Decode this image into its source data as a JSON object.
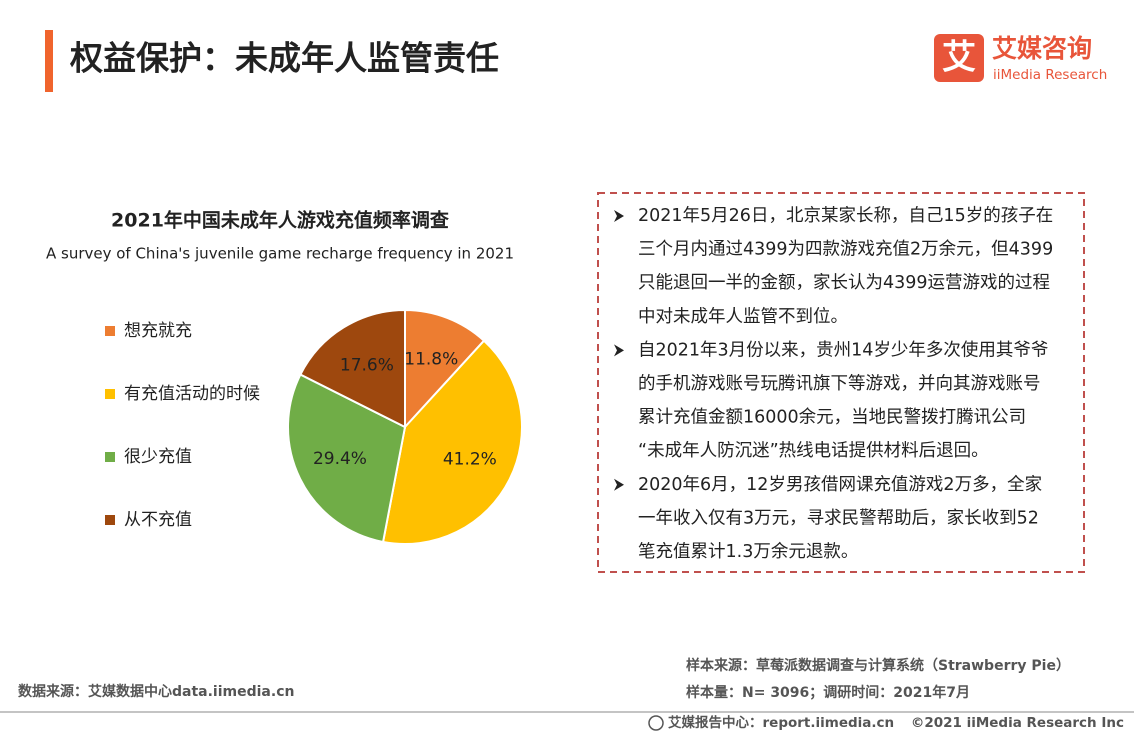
{
  "header": {
    "title": "权益保护：未成年人监管责任"
  },
  "logo": {
    "icon": "艾",
    "name": "艾媒咨询",
    "english": "iiMedia Research"
  },
  "chart_data": {
    "type": "pie",
    "title": "2021年中国未成年人游戏充值频率调查",
    "subtitle": "A survey of China's juvenile game recharge frequency in 2021",
    "categories": [
      "想充就充",
      "有充值活动的时候",
      "很少充值",
      "从不充值"
    ],
    "values": [
      11.8,
      41.2,
      29.4,
      17.6
    ],
    "value_labels": [
      "11.8%",
      "41.2%",
      "29.4%",
      "17.6%"
    ],
    "colors": [
      "#ed7d31",
      "#ffc000",
      "#70ad47",
      "#9e480e"
    ],
    "legend": "left"
  },
  "notes": [
    [
      "2021年5月26日，北京某家长称，自己15岁的孩子在",
      "三个月内通过4399为四款游戏充值2万余元，但4399",
      "只能退回一半的金额，家长认为4399运营游戏的过程",
      "中对未成年人监管不到位。"
    ],
    [
      "自2021年3月份以来，贵州14岁少年多次使用其爷爷",
      "的手机游戏账号玩腾讯旗下等游戏，并向其游戏账号",
      "累计充值金额16000余元，当地民警拨打腾讯公司",
      "“未成年人防沉迷”热线电话提供材料后退回。"
    ],
    [
      "2020年6月，12岁男孩借网课充值游戏2万多，全家",
      "一年收入仅有3万元，寻求民警帮助后，家长收到52",
      "笔充值累计1.3万余元退款。"
    ]
  ],
  "footer": {
    "data_source": "数据来源：艾媒数据中心data.iimedia.cn",
    "sample_source": "样本来源：草莓派数据调查与计算系统（Strawberry Pie）",
    "sample_size": "样本量：N= 3096；调研时间：2021年7月",
    "report_center": "艾媒报告中心：report.iimedia.cn",
    "copyright": "©2021  iiMedia Research  Inc"
  }
}
